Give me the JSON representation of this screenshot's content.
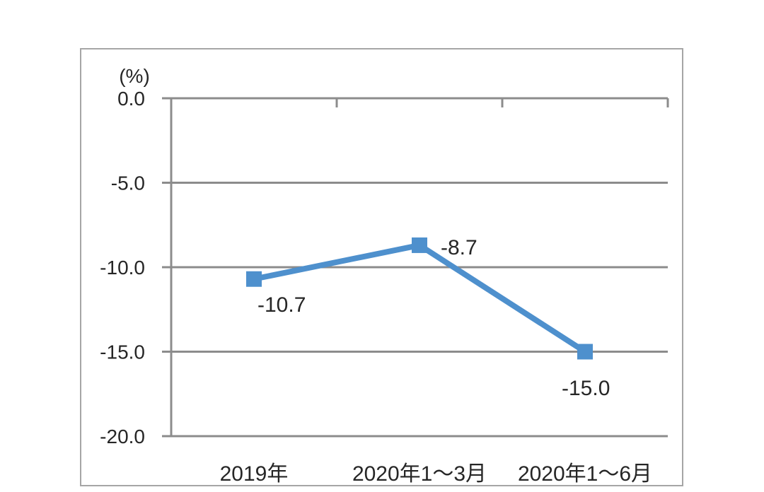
{
  "chart_data": {
    "type": "line",
    "title": "",
    "xlabel": "",
    "ylabel": "(%)",
    "categories": [
      "2019年",
      "2020年1～3月",
      "2020年1～6月"
    ],
    "series": [
      {
        "name": "series-1",
        "values": [
          -10.7,
          -8.7,
          -15.0
        ],
        "data_labels": [
          "-10.7",
          "-8.7",
          "-15.0"
        ]
      }
    ],
    "y_ticks": [
      0,
      -5,
      -10,
      -15,
      -20
    ],
    "y_tick_labels": [
      "0.0",
      "-5.0",
      "-10.0",
      "-15.0",
      "-20.0"
    ],
    "ylim": [
      -20,
      0
    ],
    "grid": true,
    "legend_position": "none",
    "marker": "square",
    "colors": {
      "series": "#4E90CD",
      "gridline": "#8C8C8C",
      "axis": "#8C8C8C",
      "text": "#262626",
      "panel_border": "#A6A6A6",
      "background": "#FFFFFF"
    }
  }
}
